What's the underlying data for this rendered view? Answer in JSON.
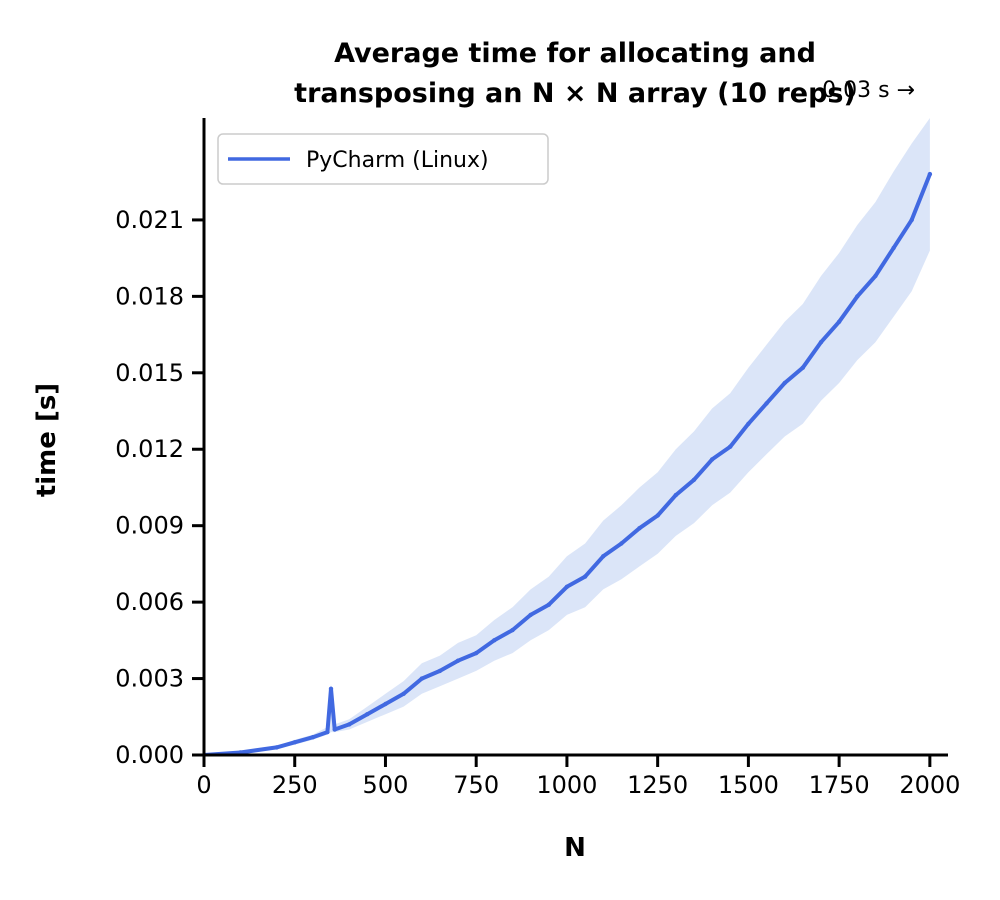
{
  "chart_data": {
    "type": "line",
    "title_lines": [
      "Average time for allocating and",
      "transposing an N × N array (10 reps)"
    ],
    "xlabel": "N",
    "ylabel": "time [s]",
    "xlim": [
      0,
      2050
    ],
    "ylim": [
      0,
      0.025
    ],
    "xticks": [
      0,
      250,
      500,
      750,
      1000,
      1250,
      1500,
      1750,
      2000
    ],
    "xtick_labels": [
      "0",
      "250",
      "500",
      "750",
      "1000",
      "1250",
      "1500",
      "1750",
      "2000"
    ],
    "yticks": [
      0.0,
      0.003,
      0.006,
      0.009,
      0.012,
      0.015,
      0.018,
      0.021
    ],
    "ytick_labels": [
      "0.000",
      "0.003",
      "0.006",
      "0.009",
      "0.012",
      "0.015",
      "0.018",
      "0.021"
    ],
    "legend_position": "top-left",
    "grid": false,
    "annotation": "0.03 s →",
    "series": [
      {
        "name": "PyCharm (Linux)",
        "color": "#4169e1",
        "band_color": "#cfdcf6",
        "x": [
          0,
          100,
          200,
          250,
          300,
          340,
          350,
          360,
          400,
          450,
          500,
          550,
          600,
          650,
          700,
          750,
          800,
          850,
          900,
          950,
          1000,
          1050,
          1100,
          1150,
          1200,
          1250,
          1300,
          1350,
          1400,
          1450,
          1500,
          1550,
          1600,
          1650,
          1700,
          1750,
          1800,
          1850,
          1900,
          1950,
          2000
        ],
        "y": [
          0.0,
          0.0001,
          0.0003,
          0.0005,
          0.0007,
          0.0009,
          0.0026,
          0.001,
          0.0012,
          0.0016,
          0.002,
          0.0024,
          0.003,
          0.0033,
          0.0037,
          0.004,
          0.0045,
          0.0049,
          0.0055,
          0.0059,
          0.0066,
          0.007,
          0.0078,
          0.0083,
          0.0089,
          0.0094,
          0.0102,
          0.0108,
          0.0116,
          0.0121,
          0.013,
          0.0138,
          0.0146,
          0.0152,
          0.0162,
          0.017,
          0.018,
          0.0188,
          0.0199,
          0.021,
          0.0228
        ],
        "upper": [
          0.0,
          0.00012,
          0.00035,
          0.0006,
          0.0008,
          0.0011,
          0.0028,
          0.0012,
          0.0014,
          0.0019,
          0.0024,
          0.0029,
          0.0036,
          0.0039,
          0.0044,
          0.0047,
          0.0053,
          0.0058,
          0.0065,
          0.007,
          0.0078,
          0.0083,
          0.0092,
          0.0098,
          0.0105,
          0.0111,
          0.012,
          0.0127,
          0.0136,
          0.0142,
          0.0152,
          0.0161,
          0.017,
          0.0177,
          0.0188,
          0.0197,
          0.0208,
          0.0217,
          0.0229,
          0.024,
          0.025
        ],
        "lower": [
          0.0,
          8e-05,
          0.00025,
          0.0004,
          0.0006,
          0.0008,
          0.0009,
          0.0009,
          0.001,
          0.0013,
          0.0016,
          0.0019,
          0.0024,
          0.0027,
          0.003,
          0.0033,
          0.0037,
          0.004,
          0.0045,
          0.0049,
          0.0055,
          0.0058,
          0.0065,
          0.0069,
          0.0074,
          0.0079,
          0.0086,
          0.0091,
          0.0098,
          0.0103,
          0.0111,
          0.0118,
          0.0125,
          0.013,
          0.0139,
          0.0146,
          0.0155,
          0.0162,
          0.0172,
          0.0182,
          0.0198
        ]
      }
    ]
  }
}
